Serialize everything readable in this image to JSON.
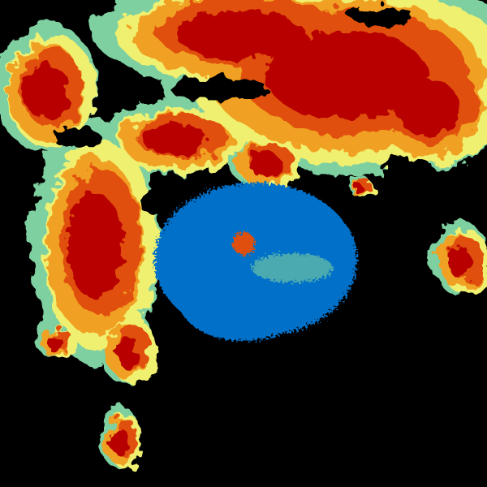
{
  "image": {
    "kind": "radar-reflectivity",
    "background": "#000000",
    "palette": {
      "light": "#0070c8",
      "weak": "#7ed0a0",
      "moderate": "#f0f070",
      "orange": "#f0a020",
      "strong": "#e05010",
      "intense": "#b80000"
    }
  }
}
